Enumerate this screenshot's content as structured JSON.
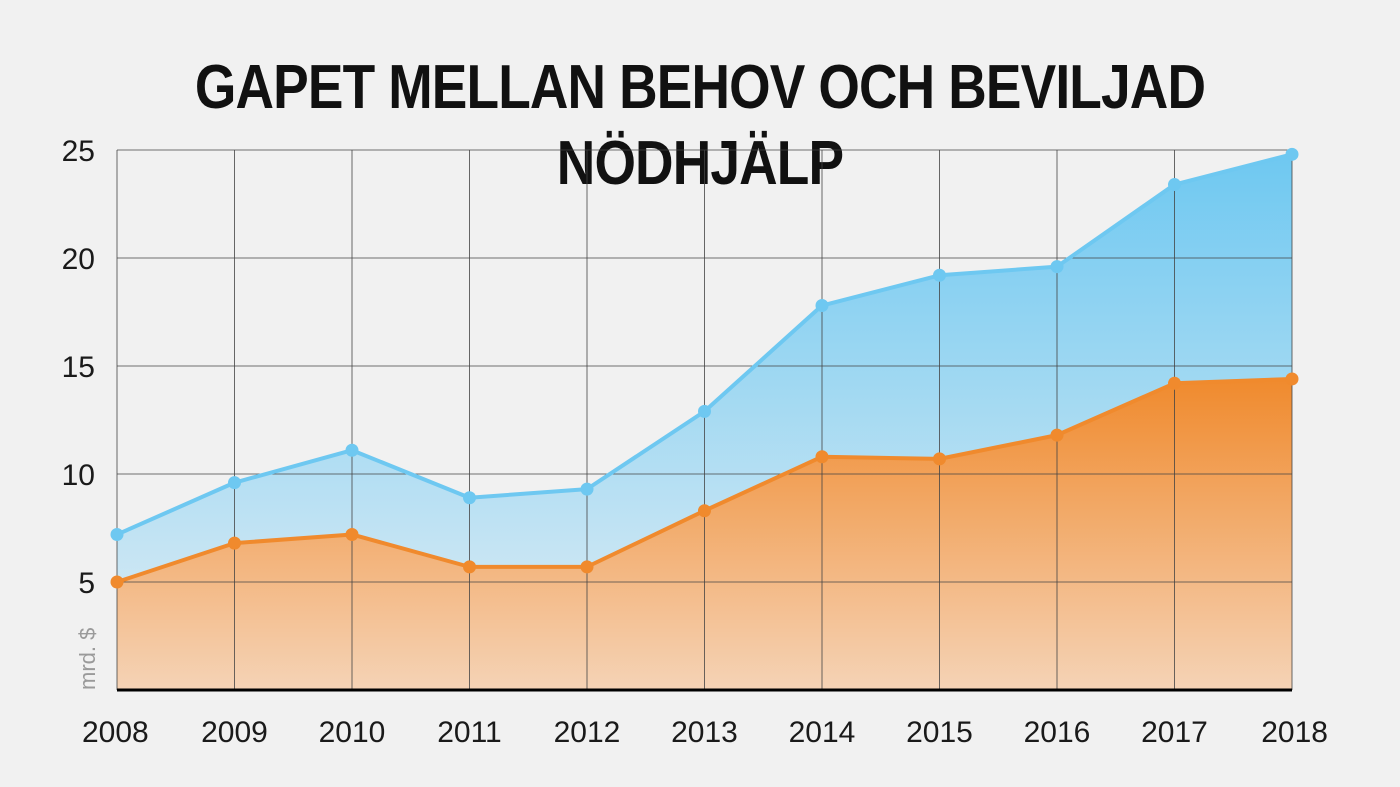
{
  "chart_data": {
    "type": "area",
    "title": "GAPET MELLAN BEHOV OCH BEVILJAD NÖDHJÄLP",
    "ylabel": "mrd. $",
    "xlabel": "",
    "x": [
      2008,
      2009,
      2010,
      2011,
      2012,
      2013,
      2014,
      2015,
      2016,
      2017,
      2018
    ],
    "x_tick_labels": [
      "2008",
      "2009",
      "2010",
      "2011",
      "2012",
      "2013",
      "2014",
      "2015",
      "2016",
      "2017",
      "2018"
    ],
    "y_tick_labels": [
      "5",
      "10",
      "15",
      "20",
      "25"
    ],
    "y_ticks": [
      5,
      10,
      15,
      20,
      25
    ],
    "ylim": [
      0,
      25
    ],
    "grid": true,
    "series": [
      {
        "values": [
          7.2,
          9.6,
          11.1,
          8.9,
          9.3,
          12.9,
          17.8,
          19.2,
          19.6,
          23.4,
          24.8
        ],
        "color": "#6ec8f1",
        "fill_top": "#6ec8f1",
        "fill_bottom": "#e3eef4"
      },
      {
        "values": [
          5.0,
          6.8,
          7.2,
          5.7,
          5.7,
          8.3,
          10.8,
          10.7,
          11.8,
          14.2,
          14.4
        ],
        "color": "#f08a2d",
        "fill_top": "#f08a2d",
        "fill_bottom": "#f5d3b6"
      }
    ]
  }
}
